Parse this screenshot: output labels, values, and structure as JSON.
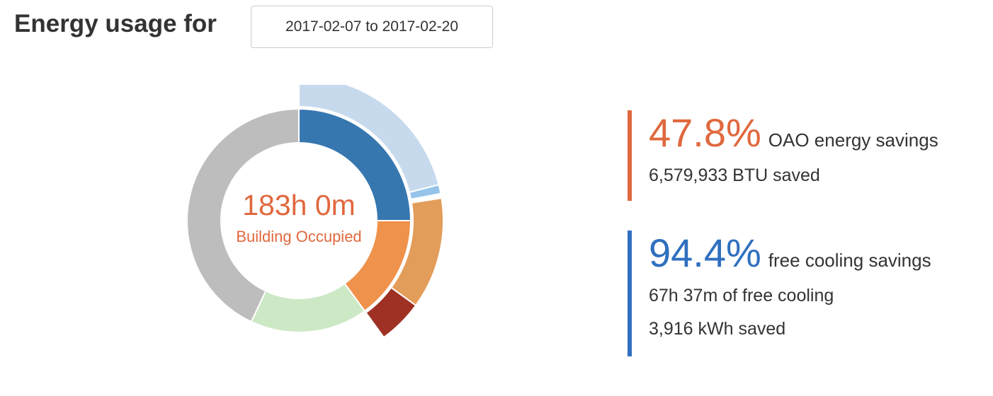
{
  "header": {
    "title": "Energy usage for",
    "date_range": "2017-02-07 to 2017-02-20"
  },
  "center": {
    "time": "183h 0m",
    "label": "Building Occupied"
  },
  "stats": {
    "oao": {
      "percent": "47.8%",
      "description": "OAO energy savings",
      "lines": [
        "6,579,933 BTU saved"
      ]
    },
    "cooling": {
      "percent": "94.4%",
      "description": "free cooling savings",
      "lines": [
        "67h 37m of free cooling",
        "3,916 kWh saved"
      ]
    }
  },
  "chart_data": {
    "type": "pie",
    "variant": "sunburst",
    "rings": [
      {
        "ring": "inner",
        "slices": [
          {
            "value": 0.25,
            "color": "#3777b0"
          },
          {
            "value": 0.15,
            "color": "#ef924b"
          },
          {
            "value": 0.17,
            "color": "#cde8c5"
          },
          {
            "value": 0.43,
            "color": "#bdbdbd"
          }
        ]
      },
      {
        "ring": "outer",
        "slices": [
          {
            "start": 0.0,
            "end": 0.21,
            "color": "#c7daed"
          },
          {
            "start": 0.21,
            "end": 0.22,
            "color": "#95c3ea"
          },
          {
            "start": 0.225,
            "end": 0.35,
            "color": "#e39d5a"
          },
          {
            "start": 0.35,
            "end": 0.4,
            "color": "#9e3124"
          }
        ]
      }
    ]
  }
}
